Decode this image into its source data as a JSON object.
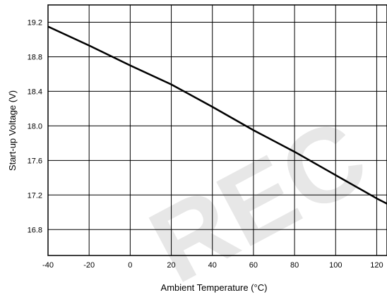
{
  "chart_data": {
    "type": "line",
    "xlabel": "Ambient Temperature (°C)",
    "ylabel": "Start-up Voltage (V)",
    "xlim": [
      -40,
      125
    ],
    "ylim": [
      16.5,
      19.4
    ],
    "x_ticks": [
      -40,
      -20,
      0,
      20,
      40,
      60,
      80,
      100,
      120
    ],
    "y_ticks": [
      16.8,
      17.2,
      17.6,
      18.0,
      18.4,
      18.8,
      19.2
    ],
    "x_tick_labels": [
      "-40",
      "-20",
      "0",
      "20",
      "40",
      "60",
      "80",
      "100",
      "120"
    ],
    "y_tick_labels": [
      "16.8",
      "17.2",
      "17.6",
      "18.0",
      "18.4",
      "18.8",
      "19.2"
    ],
    "grid": true,
    "series": [
      {
        "color": "#000000",
        "x": [
          -40,
          -20,
          0,
          20,
          40,
          60,
          80,
          100,
          120,
          125
        ],
        "y": [
          19.15,
          18.93,
          18.7,
          18.48,
          18.22,
          17.95,
          17.7,
          17.43,
          17.16,
          17.1
        ]
      }
    ]
  },
  "watermark": "REC"
}
